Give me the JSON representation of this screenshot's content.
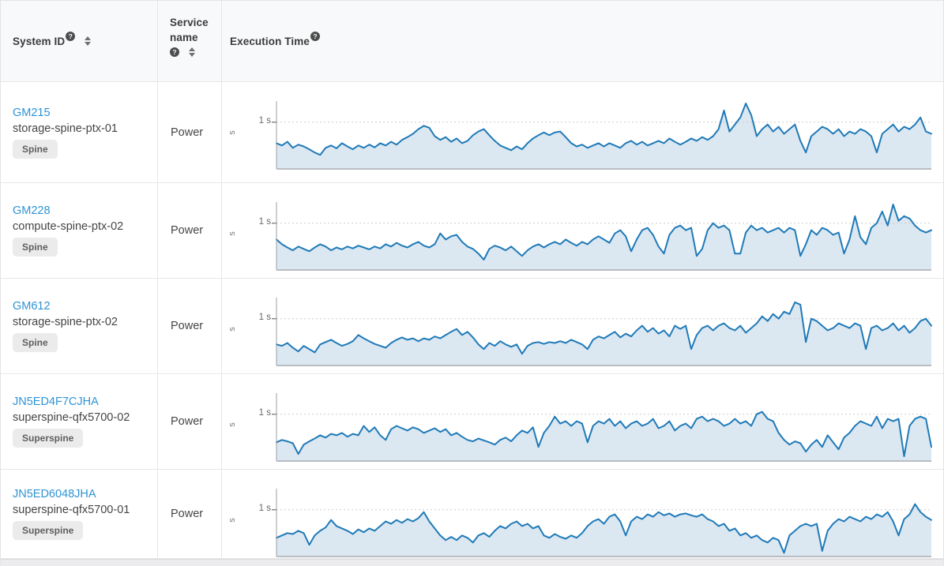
{
  "colors": {
    "link": "#2e93d4",
    "line": "#1f7ab8",
    "fill": "#dbe7f1",
    "grid": "#cccccc",
    "axis": "#9aa0a6",
    "baseline": "#b9bdc2",
    "tick": "#888888"
  },
  "table": {
    "columns": [
      {
        "label": "System ID",
        "has_help": true,
        "has_sort": true
      },
      {
        "label": "Service name",
        "has_help": true,
        "has_sort": true
      },
      {
        "label": "Execution Time",
        "has_help": true,
        "has_sort": false
      }
    ],
    "rows": [
      {
        "system_id": "GM215",
        "hostname": "storage-spine-ptx-01",
        "role": "Spine",
        "service": "Power"
      },
      {
        "system_id": "GM228",
        "hostname": "compute-spine-ptx-02",
        "role": "Spine",
        "service": "Power"
      },
      {
        "system_id": "GM612",
        "hostname": "storage-spine-ptx-02",
        "role": "Spine",
        "service": "Power"
      },
      {
        "system_id": "JN5ED4F7CJHA",
        "hostname": "superspine-qfx5700-02",
        "role": "Superspine",
        "service": "Power"
      },
      {
        "system_id": "JN5ED6048JHA",
        "hostname": "superspine-qfx5700-01",
        "role": "Superspine",
        "service": "Power"
      }
    ]
  },
  "chart_data": [
    {
      "type": "area",
      "system_id": "GM215",
      "title": "Execution Time",
      "ylabel": "s",
      "ytick_label": "1 s",
      "unit": "seconds",
      "ylim": [
        0,
        1.45
      ],
      "grid": "dashed-at-1s",
      "legend": "none",
      "values": [
        0.55,
        0.5,
        0.58,
        0.45,
        0.52,
        0.48,
        0.42,
        0.35,
        0.3,
        0.45,
        0.5,
        0.44,
        0.55,
        0.48,
        0.42,
        0.5,
        0.45,
        0.52,
        0.46,
        0.55,
        0.5,
        0.58,
        0.52,
        0.62,
        0.68,
        0.75,
        0.85,
        0.92,
        0.88,
        0.7,
        0.62,
        0.68,
        0.58,
        0.65,
        0.55,
        0.6,
        0.72,
        0.8,
        0.85,
        0.72,
        0.6,
        0.5,
        0.45,
        0.4,
        0.48,
        0.42,
        0.55,
        0.65,
        0.72,
        0.78,
        0.72,
        0.78,
        0.8,
        0.68,
        0.55,
        0.48,
        0.52,
        0.45,
        0.5,
        0.55,
        0.48,
        0.55,
        0.5,
        0.45,
        0.55,
        0.6,
        0.52,
        0.58,
        0.5,
        0.55,
        0.6,
        0.55,
        0.65,
        0.58,
        0.52,
        0.58,
        0.65,
        0.6,
        0.68,
        0.62,
        0.7,
        0.85,
        1.25,
        0.8,
        0.95,
        1.1,
        1.4,
        1.15,
        0.7,
        0.85,
        0.95,
        0.8,
        0.9,
        0.75,
        0.85,
        0.95,
        0.6,
        0.35,
        0.7,
        0.8,
        0.9,
        0.85,
        0.75,
        0.85,
        0.7,
        0.8,
        0.75,
        0.85,
        0.8,
        0.7,
        0.35,
        0.75,
        0.85,
        0.95,
        0.8,
        0.9,
        0.85,
        0.95,
        1.1,
        0.8,
        0.75
      ]
    },
    {
      "type": "area",
      "system_id": "GM228",
      "title": "Execution Time",
      "ylabel": "s",
      "ytick_label": "1 s",
      "unit": "seconds",
      "ylim": [
        0,
        1.45
      ],
      "grid": "dashed-at-1s",
      "legend": "none",
      "values": [
        0.65,
        0.55,
        0.48,
        0.42,
        0.5,
        0.45,
        0.4,
        0.48,
        0.55,
        0.5,
        0.42,
        0.48,
        0.44,
        0.5,
        0.46,
        0.52,
        0.48,
        0.44,
        0.5,
        0.46,
        0.55,
        0.5,
        0.58,
        0.52,
        0.48,
        0.55,
        0.6,
        0.52,
        0.48,
        0.55,
        0.78,
        0.65,
        0.72,
        0.75,
        0.6,
        0.5,
        0.45,
        0.35,
        0.22,
        0.45,
        0.52,
        0.48,
        0.42,
        0.5,
        0.4,
        0.3,
        0.42,
        0.5,
        0.55,
        0.48,
        0.55,
        0.6,
        0.55,
        0.65,
        0.58,
        0.52,
        0.6,
        0.55,
        0.65,
        0.72,
        0.65,
        0.58,
        0.78,
        0.85,
        0.72,
        0.4,
        0.65,
        0.85,
        0.9,
        0.75,
        0.5,
        0.35,
        0.75,
        0.9,
        0.95,
        0.85,
        0.9,
        0.3,
        0.45,
        0.85,
        1.0,
        0.9,
        0.95,
        0.85,
        0.35,
        0.35,
        0.8,
        0.95,
        0.85,
        0.9,
        0.8,
        0.85,
        0.9,
        0.8,
        0.9,
        0.85,
        0.3,
        0.55,
        0.85,
        0.75,
        0.9,
        0.85,
        0.75,
        0.8,
        0.35,
        0.65,
        1.15,
        0.7,
        0.55,
        0.9,
        1.0,
        1.25,
        0.95,
        1.4,
        1.05,
        1.15,
        1.1,
        0.95,
        0.85,
        0.8,
        0.85
      ]
    },
    {
      "type": "area",
      "system_id": "GM612",
      "title": "Execution Time",
      "ylabel": "s",
      "ytick_label": "1 s",
      "unit": "seconds",
      "ylim": [
        0,
        1.45
      ],
      "grid": "dashed-at-1s",
      "legend": "none",
      "values": [
        0.45,
        0.42,
        0.48,
        0.38,
        0.3,
        0.42,
        0.35,
        0.28,
        0.45,
        0.5,
        0.55,
        0.48,
        0.42,
        0.46,
        0.52,
        0.65,
        0.58,
        0.52,
        0.46,
        0.42,
        0.38,
        0.48,
        0.55,
        0.6,
        0.55,
        0.58,
        0.52,
        0.58,
        0.55,
        0.62,
        0.58,
        0.65,
        0.72,
        0.78,
        0.65,
        0.72,
        0.6,
        0.45,
        0.35,
        0.48,
        0.42,
        0.52,
        0.45,
        0.4,
        0.45,
        0.25,
        0.42,
        0.48,
        0.5,
        0.46,
        0.5,
        0.48,
        0.52,
        0.48,
        0.55,
        0.5,
        0.45,
        0.35,
        0.55,
        0.62,
        0.58,
        0.65,
        0.72,
        0.6,
        0.68,
        0.62,
        0.75,
        0.85,
        0.72,
        0.8,
        0.68,
        0.75,
        0.62,
        0.85,
        0.78,
        0.85,
        0.35,
        0.65,
        0.8,
        0.85,
        0.75,
        0.85,
        0.9,
        0.8,
        0.75,
        0.85,
        0.7,
        0.8,
        0.9,
        1.05,
        0.95,
        1.1,
        1.0,
        1.15,
        1.1,
        1.35,
        1.3,
        0.5,
        1.0,
        0.95,
        0.85,
        0.75,
        0.8,
        0.9,
        0.85,
        0.8,
        0.9,
        0.85,
        0.35,
        0.8,
        0.85,
        0.75,
        0.8,
        0.9,
        0.75,
        0.85,
        0.7,
        0.8,
        0.95,
        1.0,
        0.85
      ]
    },
    {
      "type": "area",
      "system_id": "JN5ED4F7CJHA",
      "title": "Execution Time",
      "ylabel": "s",
      "ytick_label": "1 s",
      "unit": "seconds",
      "ylim": [
        0,
        1.45
      ],
      "grid": "dashed-at-1s",
      "legend": "none",
      "values": [
        0.4,
        0.45,
        0.42,
        0.38,
        0.15,
        0.35,
        0.42,
        0.48,
        0.55,
        0.5,
        0.58,
        0.55,
        0.6,
        0.52,
        0.58,
        0.55,
        0.75,
        0.62,
        0.72,
        0.55,
        0.45,
        0.68,
        0.75,
        0.7,
        0.65,
        0.72,
        0.68,
        0.6,
        0.65,
        0.7,
        0.62,
        0.68,
        0.55,
        0.6,
        0.52,
        0.45,
        0.42,
        0.48,
        0.44,
        0.4,
        0.35,
        0.45,
        0.5,
        0.42,
        0.55,
        0.65,
        0.6,
        0.72,
        0.3,
        0.6,
        0.75,
        0.95,
        0.8,
        0.85,
        0.75,
        0.85,
        0.8,
        0.4,
        0.75,
        0.85,
        0.8,
        0.9,
        0.75,
        0.85,
        0.7,
        0.8,
        0.85,
        0.75,
        0.8,
        0.9,
        0.7,
        0.75,
        0.85,
        0.65,
        0.75,
        0.8,
        0.7,
        0.9,
        0.95,
        0.85,
        0.9,
        0.85,
        0.75,
        0.8,
        0.9,
        0.8,
        0.85,
        0.75,
        1.0,
        1.05,
        0.9,
        0.85,
        0.6,
        0.45,
        0.35,
        0.42,
        0.38,
        0.2,
        0.35,
        0.45,
        0.3,
        0.55,
        0.4,
        0.25,
        0.5,
        0.6,
        0.75,
        0.85,
        0.8,
        0.75,
        0.95,
        0.7,
        0.9,
        0.85,
        0.9,
        0.1,
        0.75,
        0.9,
        0.95,
        0.9,
        0.3
      ]
    },
    {
      "type": "area",
      "system_id": "JN5ED6048JHA",
      "title": "Execution Time",
      "ylabel": "s",
      "ytick_label": "1 s",
      "unit": "seconds",
      "ylim": [
        0,
        1.45
      ],
      "grid": "dashed-at-1s",
      "legend": "none",
      "values": [
        0.4,
        0.45,
        0.5,
        0.48,
        0.55,
        0.5,
        0.25,
        0.45,
        0.55,
        0.62,
        0.78,
        0.65,
        0.6,
        0.55,
        0.48,
        0.58,
        0.52,
        0.6,
        0.55,
        0.65,
        0.75,
        0.7,
        0.78,
        0.72,
        0.8,
        0.75,
        0.82,
        0.95,
        0.75,
        0.6,
        0.45,
        0.35,
        0.42,
        0.35,
        0.45,
        0.4,
        0.3,
        0.45,
        0.5,
        0.42,
        0.55,
        0.65,
        0.6,
        0.7,
        0.75,
        0.65,
        0.7,
        0.6,
        0.65,
        0.45,
        0.4,
        0.48,
        0.42,
        0.38,
        0.45,
        0.4,
        0.5,
        0.65,
        0.75,
        0.8,
        0.7,
        0.85,
        0.9,
        0.75,
        0.45,
        0.75,
        0.85,
        0.8,
        0.9,
        0.85,
        0.95,
        0.88,
        0.92,
        0.85,
        0.9,
        0.92,
        0.88,
        0.85,
        0.9,
        0.8,
        0.75,
        0.65,
        0.7,
        0.55,
        0.6,
        0.45,
        0.5,
        0.4,
        0.45,
        0.35,
        0.3,
        0.4,
        0.35,
        0.08,
        0.45,
        0.55,
        0.65,
        0.7,
        0.65,
        0.7,
        0.12,
        0.55,
        0.7,
        0.8,
        0.75,
        0.85,
        0.8,
        0.75,
        0.85,
        0.8,
        0.9,
        0.85,
        0.95,
        0.75,
        0.45,
        0.8,
        0.9,
        1.12,
        0.95,
        0.85,
        0.78
      ]
    }
  ]
}
